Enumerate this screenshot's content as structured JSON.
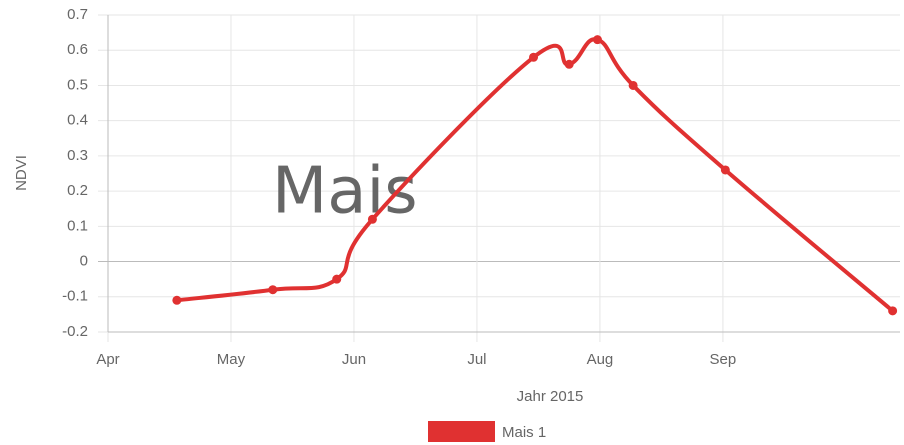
{
  "chart_data": {
    "type": "line",
    "overlay_text": "Mais",
    "x_label": "Jahr 2015",
    "y_label": "NDVI",
    "x": [
      4.56,
      5.34,
      5.86,
      6.15,
      7.46,
      7.75,
      7.98,
      8.27,
      9.02,
      10.38
    ],
    "series": [
      {
        "name": "Mais 1",
        "color": "#e03131",
        "values": [
          -0.11,
          -0.08,
          -0.05,
          0.12,
          0.58,
          0.56,
          0.63,
          0.5,
          0.26,
          -0.14
        ]
      }
    ],
    "xlim": [
      4,
      10.44
    ],
    "xticks": [
      {
        "value": 4,
        "label": "Apr"
      },
      {
        "value": 5,
        "label": "May"
      },
      {
        "value": 6,
        "label": "Jun"
      },
      {
        "value": 7,
        "label": "Jul"
      },
      {
        "value": 8,
        "label": "Aug"
      },
      {
        "value": 9,
        "label": "Sep"
      }
    ],
    "ylim": [
      -0.2,
      0.7
    ],
    "yticks": [
      -0.2,
      -0.1,
      0,
      0.1,
      0.2,
      0.3,
      0.4,
      0.5,
      0.6,
      0.7
    ],
    "grid": true,
    "legend": "bottom"
  }
}
